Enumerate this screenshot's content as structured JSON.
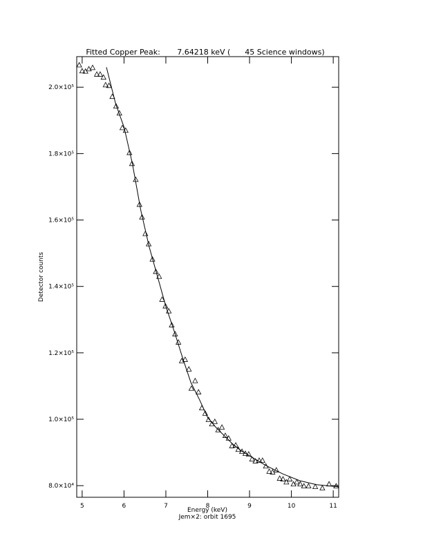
{
  "chart_data": {
    "type": "scatter",
    "title": "Fitted Copper Peak:       7.64218 keV (      45 Science windows)",
    "xlabel": "Energy (keV)",
    "xlabel2": "Jem×2: orbit 1695",
    "ylabel": "Detector counts",
    "xlim": [
      4.87,
      11.13
    ],
    "ylim": [
      76500,
      209200
    ],
    "xticks": [
      5,
      6,
      7,
      8,
      9,
      10,
      11
    ],
    "yticks": [
      {
        "value": 80000,
        "label": "8.0×10⁴"
      },
      {
        "value": 100000,
        "label": "1.0×10⁵"
      },
      {
        "value": 120000,
        "label": "1.2×10⁵"
      },
      {
        "value": 140000,
        "label": "1.4×10⁵"
      },
      {
        "value": 160000,
        "label": "1.6×10⁵"
      },
      {
        "value": 180000,
        "label": "1.8×10⁵"
      },
      {
        "value": 200000,
        "label": "2.0×10⁵"
      }
    ],
    "series": [
      {
        "marker": "triangle",
        "color": "#000000",
        "x": [
          4.93,
          5.0,
          5.08,
          5.16,
          5.25,
          5.35,
          5.43,
          5.51,
          5.56,
          5.64,
          5.72,
          5.81,
          5.89,
          5.96,
          6.04,
          6.13,
          6.19,
          6.28,
          6.37,
          6.43,
          6.51,
          6.59,
          6.68,
          6.76,
          6.84,
          6.91,
          6.99,
          7.07,
          7.14,
          7.22,
          7.3,
          7.38,
          7.46,
          7.55,
          7.61,
          7.7,
          7.78,
          7.86,
          7.94,
          8.02,
          8.1,
          8.17,
          8.25,
          8.34,
          8.42,
          8.5,
          8.58,
          8.67,
          8.73,
          8.82,
          8.9,
          8.98,
          9.06,
          9.14,
          9.23,
          9.31,
          9.39,
          9.47,
          9.55,
          9.64,
          9.72,
          9.8,
          9.88,
          9.96,
          10.05,
          10.13,
          10.21,
          10.3,
          10.41,
          10.57,
          10.74,
          10.9,
          11.07
        ],
        "values": [
          206600,
          204800,
          204700,
          205400,
          205800,
          203800,
          203800,
          202900,
          200600,
          200400,
          197100,
          194200,
          192100,
          187700,
          186900,
          180200,
          176900,
          172100,
          164600,
          160800,
          155800,
          152700,
          148100,
          144400,
          142900,
          136000,
          134000,
          132500,
          128300,
          125600,
          123100,
          117500,
          117900,
          115000,
          109200,
          111500,
          108100,
          103300,
          101700,
          99800,
          98500,
          99200,
          96700,
          97500,
          95000,
          94200,
          91900,
          92100,
          90800,
          90200,
          89600,
          89400,
          87900,
          87300,
          87500,
          87500,
          85800,
          84200,
          84000,
          84600,
          82100,
          81900,
          81000,
          81900,
          80400,
          81000,
          80400,
          79800,
          79800,
          79600,
          79200,
          80400,
          79800
        ]
      },
      {
        "marker": "line",
        "color": "#000000",
        "x": [
          5.58,
          5.8,
          6.0,
          6.2,
          6.4,
          6.6,
          6.8,
          7.0,
          7.2,
          7.4,
          7.6,
          7.8,
          8.0,
          8.2,
          8.4,
          8.6,
          8.8,
          9.0,
          9.4,
          9.8,
          10.2,
          10.6,
          11.0,
          11.13
        ],
        "values": [
          206000,
          195000,
          188000,
          177000,
          163000,
          152000,
          143000,
          134000,
          126500,
          118500,
          111000,
          106000,
          100500,
          97500,
          95000,
          92500,
          90500,
          89000,
          86000,
          83500,
          81500,
          80300,
          79800,
          79700
        ]
      }
    ]
  }
}
